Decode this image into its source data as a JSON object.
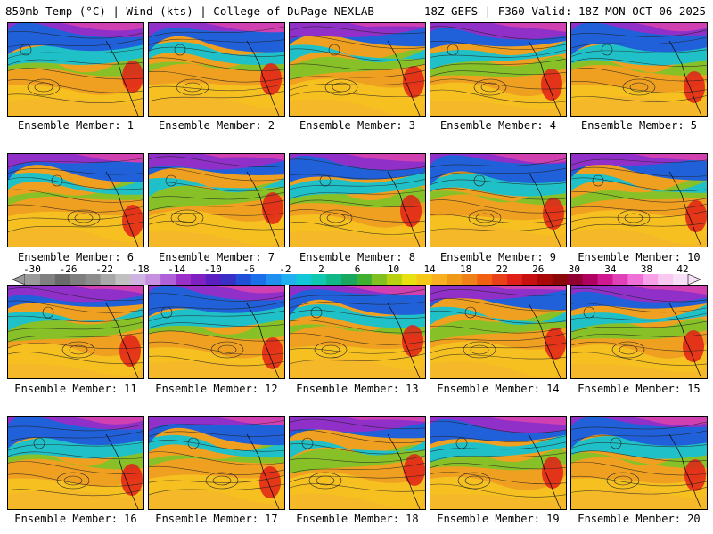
{
  "header": {
    "left": "850mb Temp (°C) | Wind (kts) | College of DuPage NEXLAB",
    "right": "18Z GEFS | F360 Valid: 18Z MON OCT 06 2025"
  },
  "members": [
    {
      "label": "Ensemble Member: 1"
    },
    {
      "label": "Ensemble Member: 2"
    },
    {
      "label": "Ensemble Member: 3"
    },
    {
      "label": "Ensemble Member: 4"
    },
    {
      "label": "Ensemble Member: 5"
    },
    {
      "label": "Ensemble Member: 6"
    },
    {
      "label": "Ensemble Member: 7"
    },
    {
      "label": "Ensemble Member: 8"
    },
    {
      "label": "Ensemble Member: 9"
    },
    {
      "label": "Ensemble Member: 10"
    },
    {
      "label": "Ensemble Member: 11"
    },
    {
      "label": "Ensemble Member: 12"
    },
    {
      "label": "Ensemble Member: 13"
    },
    {
      "label": "Ensemble Member: 14"
    },
    {
      "label": "Ensemble Member: 15"
    },
    {
      "label": "Ensemble Member: 16"
    },
    {
      "label": "Ensemble Member: 17"
    },
    {
      "label": "Ensemble Member: 18"
    },
    {
      "label": "Ensemble Member: 19"
    },
    {
      "label": "Ensemble Member: 20"
    }
  ],
  "colorbar": {
    "tick_labels": [
      "-30",
      "-26",
      "-22",
      "-18",
      "-14",
      "-10",
      "-6",
      "-2",
      "2",
      "6",
      "10",
      "14",
      "18",
      "22",
      "26",
      "30",
      "34",
      "38",
      "42"
    ],
    "colors": [
      "#9a9a9a",
      "#808080",
      "#6a6a6a",
      "#7e7e7e",
      "#8c8c8c",
      "#a8a8a8",
      "#c0c0c0",
      "#cfb3e0",
      "#c890e0",
      "#b060d8",
      "#9b30c8",
      "#8020c0",
      "#5a1fc0",
      "#3a30c8",
      "#2050d8",
      "#1b6fe8",
      "#1f8ff0",
      "#20b0f0",
      "#10c8d8",
      "#10c8b0",
      "#10b888",
      "#18a860",
      "#40b030",
      "#80c020",
      "#b8d010",
      "#e8e010",
      "#f8c818",
      "#f8b020",
      "#f09818",
      "#f08018",
      "#f06010",
      "#e84018",
      "#e02018",
      "#c81010",
      "#a80808",
      "#8c0808",
      "#900030",
      "#b00060",
      "#d01890",
      "#e040b8",
      "#f070d8",
      "#f8a0e8",
      "#f8c8f0",
      "#f8e0f8"
    ]
  }
}
